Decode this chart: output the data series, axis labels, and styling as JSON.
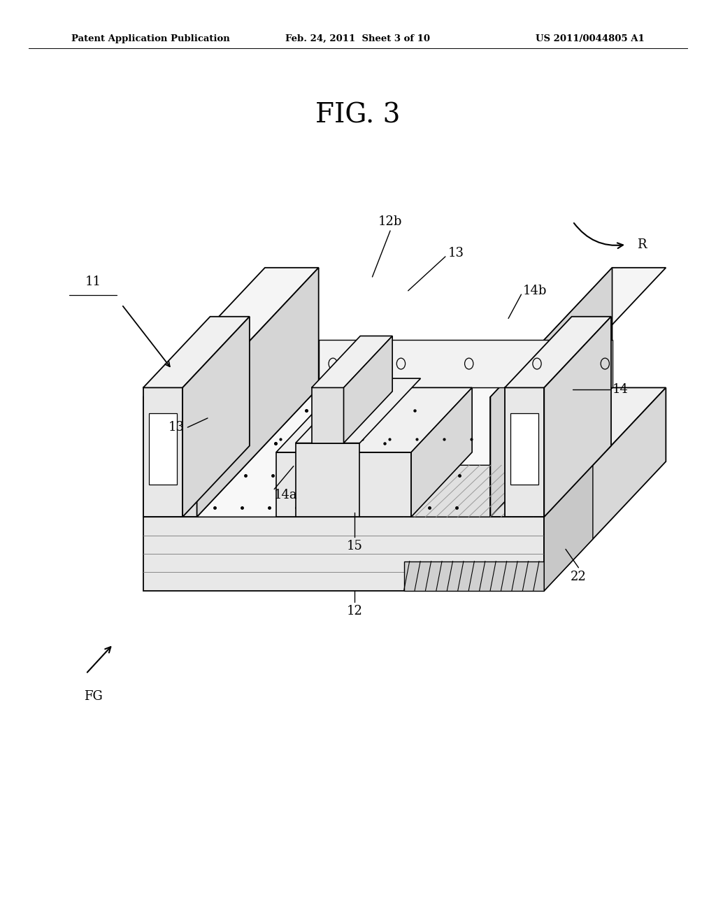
{
  "fig_label": "FIG. 3",
  "header_left": "Patent Application Publication",
  "header_center": "Feb. 24, 2011  Sheet 3 of 10",
  "header_right": "US 2011/0044805 A1",
  "background_color": "#ffffff",
  "line_color": "#000000",
  "label_fontsize": 13,
  "header_fontsize": 9.5,
  "title_fontsize": 28
}
